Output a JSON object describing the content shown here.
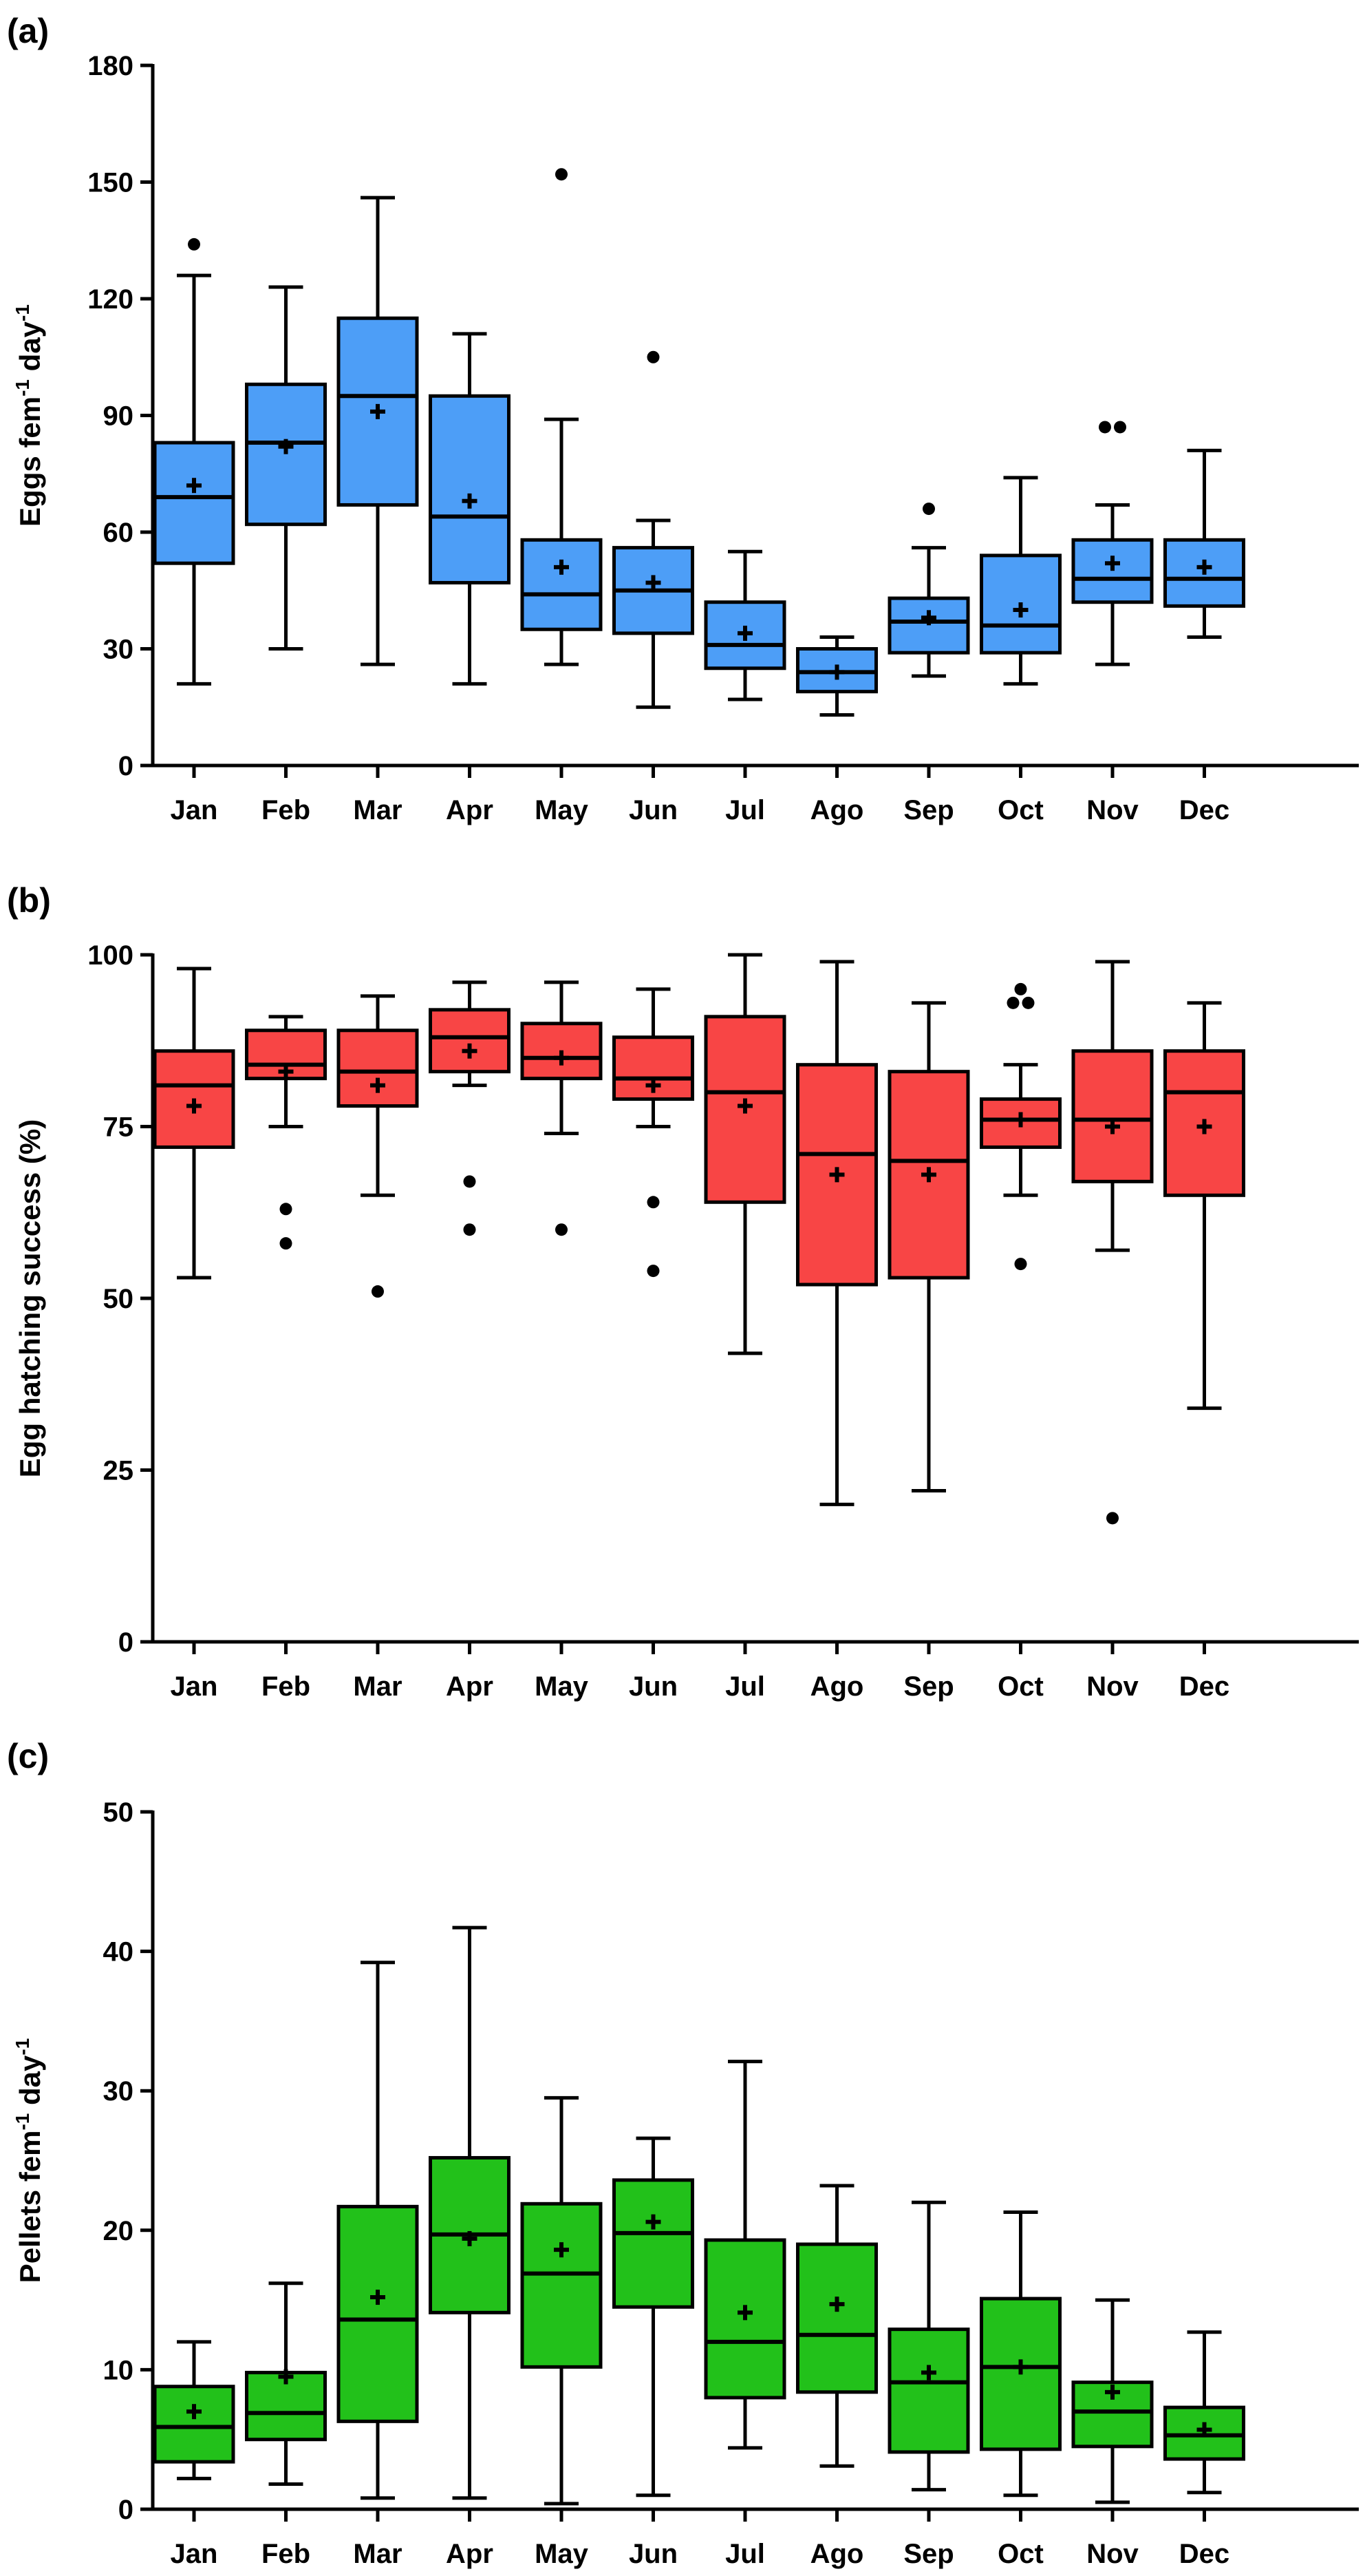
{
  "chart_data": [
    {
      "type": "boxplot",
      "panel_label": "(a)",
      "ylabel": "Eggs fem",
      "ylabel_sup1": "-1",
      "ylabel_mid": " day",
      "ylabel_sup2": "-1",
      "ylim": [
        0,
        180
      ],
      "yticks": [
        0,
        30,
        60,
        90,
        120,
        150,
        180
      ],
      "color": "#4d9ef7",
      "categories": [
        "Jan",
        "Feb",
        "Mar",
        "Apr",
        "May",
        "Jun",
        "Jul",
        "Ago",
        "Sep",
        "Oct",
        "Nov",
        "Dec"
      ],
      "boxes": [
        {
          "min": 21,
          "q1": 52,
          "median": 69,
          "q3": 83,
          "max": 126,
          "mean": 72,
          "outliers": [
            134
          ]
        },
        {
          "min": 30,
          "q1": 62,
          "median": 83,
          "q3": 98,
          "max": 123,
          "mean": 82,
          "outliers": []
        },
        {
          "min": 26,
          "q1": 67,
          "median": 95,
          "q3": 115,
          "max": 146,
          "mean": 91,
          "outliers": []
        },
        {
          "min": 21,
          "q1": 47,
          "median": 64,
          "q3": 95,
          "max": 111,
          "mean": 68,
          "outliers": []
        },
        {
          "min": 26,
          "q1": 35,
          "median": 44,
          "q3": 58,
          "max": 89,
          "mean": 51,
          "outliers": [
            152
          ]
        },
        {
          "min": 15,
          "q1": 34,
          "median": 45,
          "q3": 56,
          "max": 63,
          "mean": 47,
          "outliers": [
            105
          ]
        },
        {
          "min": 17,
          "q1": 25,
          "median": 31,
          "q3": 42,
          "max": 55,
          "mean": 34,
          "outliers": []
        },
        {
          "min": 13,
          "q1": 19,
          "median": 24,
          "q3": 30,
          "max": 33,
          "mean": 24,
          "outliers": []
        },
        {
          "min": 23,
          "q1": 29,
          "median": 37,
          "q3": 43,
          "max": 56,
          "mean": 38,
          "outliers": [
            66
          ]
        },
        {
          "min": 21,
          "q1": 29,
          "median": 36,
          "q3": 54,
          "max": 74,
          "mean": 40,
          "outliers": []
        },
        {
          "min": 26,
          "q1": 42,
          "median": 48,
          "q3": 58,
          "max": 67,
          "mean": 52,
          "outliers": [
            87,
            87
          ]
        },
        {
          "min": 33,
          "q1": 41,
          "median": 48,
          "q3": 58,
          "max": 81,
          "mean": 51,
          "outliers": []
        }
      ]
    },
    {
      "type": "boxplot",
      "panel_label": "(b)",
      "ylabel": "Egg hatching success (%)",
      "ylim": [
        0,
        100
      ],
      "yticks": [
        0,
        25,
        50,
        75,
        100
      ],
      "color": "#f84545",
      "categories": [
        "Jan",
        "Feb",
        "Mar",
        "Apr",
        "May",
        "Jun",
        "Jul",
        "Ago",
        "Sep",
        "Oct",
        "Nov",
        "Dec"
      ],
      "boxes": [
        {
          "min": 53,
          "q1": 72,
          "median": 81,
          "q3": 86,
          "max": 98,
          "mean": 78,
          "outliers": []
        },
        {
          "min": 75,
          "q1": 82,
          "median": 84,
          "q3": 89,
          "max": 91,
          "mean": 83,
          "outliers": [
            63,
            58
          ]
        },
        {
          "min": 65,
          "q1": 78,
          "median": 83,
          "q3": 89,
          "max": 94,
          "mean": 81,
          "outliers": [
            51
          ]
        },
        {
          "min": 81,
          "q1": 83,
          "median": 88,
          "q3": 92,
          "max": 96,
          "mean": 86,
          "outliers": [
            67,
            60
          ]
        },
        {
          "min": 74,
          "q1": 82,
          "median": 85,
          "q3": 90,
          "max": 96,
          "mean": 85,
          "outliers": [
            60
          ]
        },
        {
          "min": 75,
          "q1": 79,
          "median": 82,
          "q3": 88,
          "max": 95,
          "mean": 81,
          "outliers": [
            64,
            54
          ]
        },
        {
          "min": 42,
          "q1": 64,
          "median": 80,
          "q3": 91,
          "max": 100,
          "mean": 78,
          "outliers": []
        },
        {
          "min": 20,
          "q1": 52,
          "median": 71,
          "q3": 84,
          "max": 99,
          "mean": 68,
          "outliers": []
        },
        {
          "min": 22,
          "q1": 53,
          "median": 70,
          "q3": 83,
          "max": 93,
          "mean": 68,
          "outliers": []
        },
        {
          "min": 65,
          "q1": 72,
          "median": 76,
          "q3": 79,
          "max": 84,
          "mean": 76,
          "outliers": [
            55,
            93,
            93,
            95
          ]
        },
        {
          "min": 57,
          "q1": 67,
          "median": 76,
          "q3": 86,
          "max": 99,
          "mean": 75,
          "outliers": [
            18
          ]
        },
        {
          "min": 34,
          "q1": 65,
          "median": 80,
          "q3": 86,
          "max": 93,
          "mean": 75,
          "outliers": []
        }
      ]
    },
    {
      "type": "boxplot",
      "panel_label": "(c)",
      "ylabel": "Pellets fem",
      "ylabel_sup1": "-1",
      "ylabel_mid": " day",
      "ylabel_sup2": "-1",
      "ylim": [
        0,
        50
      ],
      "yticks": [
        0,
        10,
        20,
        30,
        40,
        50
      ],
      "color": "#22c11a",
      "categories": [
        "Jan",
        "Feb",
        "Mar",
        "Apr",
        "May",
        "Jun",
        "Jul",
        "Ago",
        "Sep",
        "Oct",
        "Nov",
        "Dec"
      ],
      "boxes": [
        {
          "min": 2.2,
          "q1": 3.4,
          "median": 5.9,
          "q3": 8.8,
          "max": 12.0,
          "mean": 7.0,
          "outliers": []
        },
        {
          "min": 1.8,
          "q1": 5.0,
          "median": 6.9,
          "q3": 9.8,
          "max": 16.2,
          "mean": 9.5,
          "outliers": []
        },
        {
          "min": 0.8,
          "q1": 6.3,
          "median": 13.6,
          "q3": 21.7,
          "max": 39.2,
          "mean": 15.2,
          "outliers": []
        },
        {
          "min": 0.8,
          "q1": 14.1,
          "median": 19.7,
          "q3": 25.2,
          "max": 41.7,
          "mean": 19.4,
          "outliers": []
        },
        {
          "min": 0.4,
          "q1": 10.2,
          "median": 16.9,
          "q3": 21.9,
          "max": 29.5,
          "mean": 18.6,
          "outliers": []
        },
        {
          "min": 1.0,
          "q1": 14.5,
          "median": 19.8,
          "q3": 23.6,
          "max": 26.6,
          "mean": 20.6,
          "outliers": []
        },
        {
          "min": 4.4,
          "q1": 8.0,
          "median": 12.0,
          "q3": 19.3,
          "max": 32.1,
          "mean": 14.1,
          "outliers": []
        },
        {
          "min": 3.1,
          "q1": 8.4,
          "median": 12.5,
          "q3": 19.0,
          "max": 23.2,
          "mean": 14.7,
          "outliers": []
        },
        {
          "min": 1.4,
          "q1": 4.1,
          "median": 9.1,
          "q3": 12.9,
          "max": 22.0,
          "mean": 9.8,
          "outliers": []
        },
        {
          "min": 1.0,
          "q1": 4.3,
          "median": 10.2,
          "q3": 15.1,
          "max": 21.3,
          "mean": 10.2,
          "outliers": []
        },
        {
          "min": 0.5,
          "q1": 4.5,
          "median": 7.0,
          "q3": 9.1,
          "max": 15.0,
          "mean": 8.4,
          "outliers": []
        },
        {
          "min": 1.2,
          "q1": 3.6,
          "median": 5.3,
          "q3": 7.3,
          "max": 12.7,
          "mean": 5.7,
          "outliers": []
        }
      ]
    }
  ]
}
